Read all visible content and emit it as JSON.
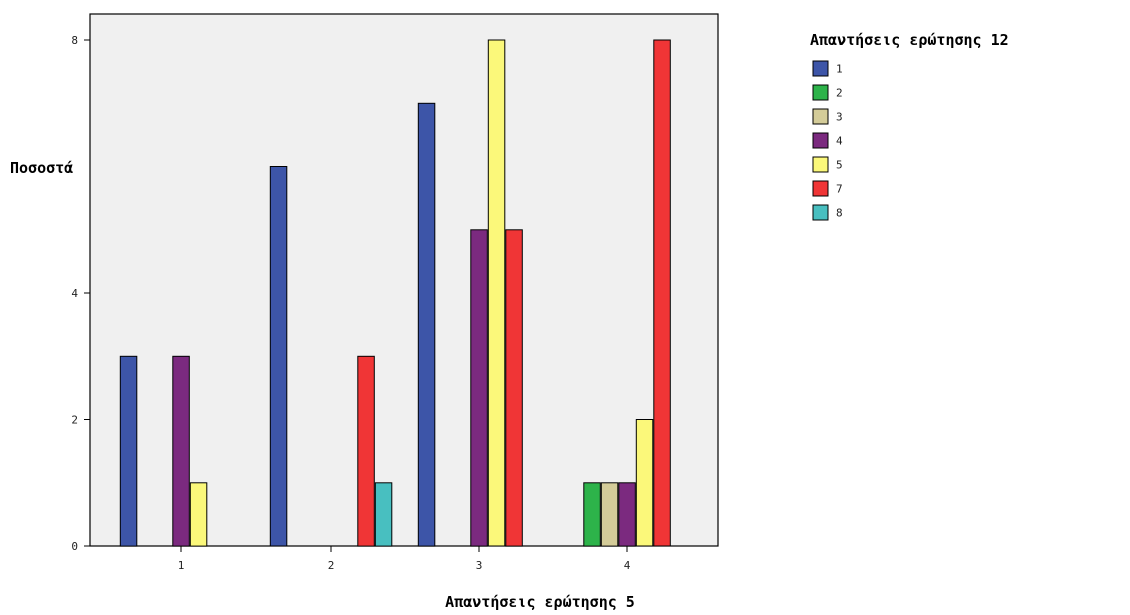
{
  "chart_data": {
    "type": "bar",
    "xlabel": "Απαντήσεις ερώτησης 5",
    "ylabel": "Ποσοστά",
    "legend_title": "Απαντήσεις ερώτησης 12",
    "legend_position": "top-right",
    "grid": false,
    "categories": [
      "1",
      "2",
      "3",
      "4"
    ],
    "yticks": [
      "0",
      "2",
      "4",
      "8"
    ],
    "ylim": [
      0,
      8.4
    ],
    "plot_background": "#f0f0f0",
    "series": [
      {
        "name": "1",
        "color": "#3d55a8",
        "values": [
          3,
          6,
          7,
          null
        ]
      },
      {
        "name": "2",
        "color": "#2db34a",
        "values": [
          null,
          null,
          null,
          1
        ]
      },
      {
        "name": "3",
        "color": "#d4cc99",
        "values": [
          null,
          null,
          null,
          1
        ]
      },
      {
        "name": "4",
        "color": "#7b2a7f",
        "values": [
          3,
          null,
          5,
          1
        ]
      },
      {
        "name": "5",
        "color": "#fbf87a",
        "values": [
          1,
          null,
          8,
          2
        ]
      },
      {
        "name": "7",
        "color": "#f03536",
        "values": [
          null,
          3,
          5,
          8
        ]
      },
      {
        "name": "8",
        "color": "#48bfc0",
        "values": [
          null,
          1,
          null,
          null
        ]
      }
    ]
  }
}
